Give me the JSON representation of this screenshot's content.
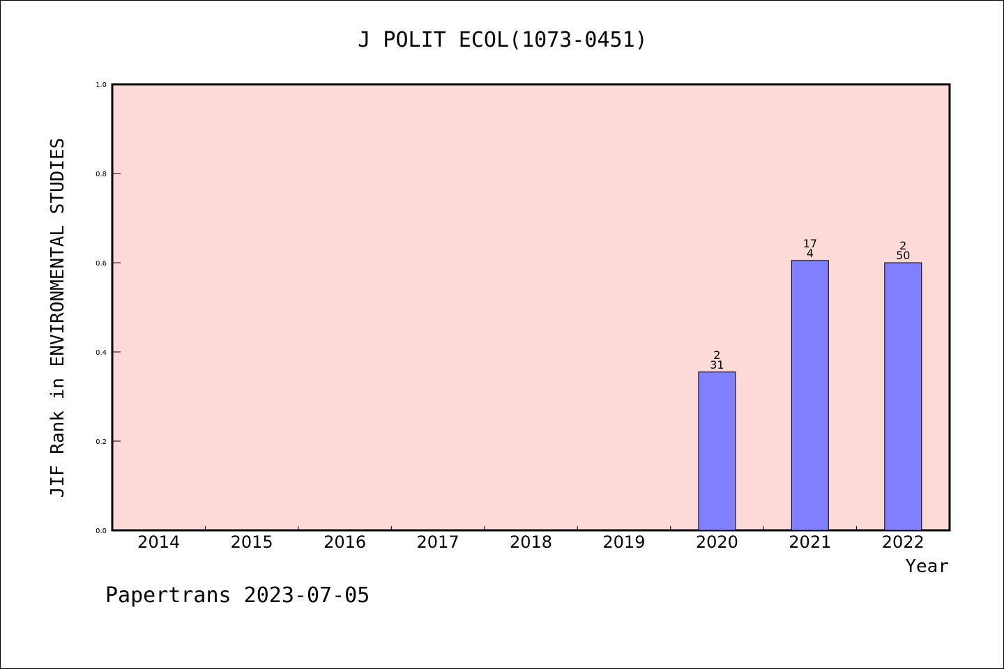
{
  "chart_data": {
    "type": "bar",
    "title": "J POLIT ECOL(1073-0451)",
    "xlabel": "Year",
    "ylabel": "JIF Rank in ENVIRONMENTAL STUDIES",
    "categories": [
      "2014",
      "2015",
      "2016",
      "2017",
      "2018",
      "2019",
      "2020",
      "2021",
      "2022"
    ],
    "values": [
      null,
      null,
      null,
      null,
      null,
      null,
      0.355,
      0.605,
      0.6
    ],
    "bar_labels": [
      null,
      null,
      null,
      null,
      null,
      null,
      {
        "top": "2",
        "bottom": "31"
      },
      {
        "top": "17",
        "bottom": "4"
      },
      {
        "top": "2",
        "bottom": "50"
      }
    ],
    "ylim": [
      0,
      1.0
    ],
    "yticks": [
      "0.0",
      "0.2",
      "0.4",
      "0.6",
      "0.8",
      "1.0"
    ],
    "grid": false,
    "colors": {
      "plot_background": "#fddad7",
      "bar_fill": "#8080ff",
      "bar_stroke": "#000000"
    }
  },
  "footer": "Papertrans 2023-07-05"
}
